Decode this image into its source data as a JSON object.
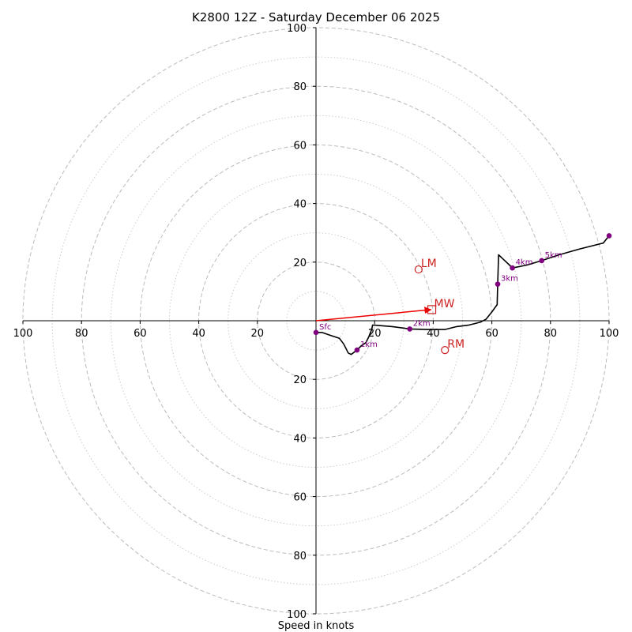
{
  "chart_data": {
    "type": "hodograph",
    "title": "K2800 12Z - Saturday December 06 2025",
    "xlabel": "Speed in knots",
    "units": "knots",
    "range": [
      -100,
      100
    ],
    "major_rings": [
      20,
      40,
      60,
      80,
      100
    ],
    "minor_rings": [
      10,
      30,
      50,
      70,
      90
    ],
    "tick_values": [
      20,
      40,
      60,
      80,
      100
    ],
    "tick_labels": [
      "20",
      "40",
      "60",
      "80",
      "100"
    ],
    "colors": {
      "trace": "#000000",
      "heights": "#800080",
      "motion": "#cc2222",
      "mean_wind_arrow": "#ee0000",
      "rings": "#bbbbbb"
    },
    "trace": [
      [
        0,
        -4
      ],
      [
        2,
        -4
      ],
      [
        5,
        -5
      ],
      [
        8,
        -6
      ],
      [
        9.5,
        -8
      ],
      [
        11,
        -11
      ],
      [
        12,
        -11.5
      ],
      [
        14,
        -10
      ],
      [
        15.5,
        -8.5
      ],
      [
        17,
        -7.5
      ],
      [
        18,
        -5.5
      ],
      [
        19,
        -3
      ],
      [
        19.3,
        -1.5
      ],
      [
        20,
        -1.5
      ],
      [
        26,
        -2
      ],
      [
        32,
        -2.8
      ],
      [
        38,
        -3
      ],
      [
        44,
        -3
      ],
      [
        48,
        -2
      ],
      [
        52,
        -1.5
      ],
      [
        56,
        -0.5
      ],
      [
        58,
        0.5
      ],
      [
        60,
        3
      ],
      [
        61.8,
        5.5
      ],
      [
        62,
        12.5
      ],
      [
        62.3,
        22.5
      ],
      [
        66,
        19
      ],
      [
        67,
        18
      ],
      [
        72,
        19
      ],
      [
        77,
        20.5
      ],
      [
        83,
        22.5
      ],
      [
        90,
        24.5
      ],
      [
        98,
        26.5
      ],
      [
        100,
        29
      ]
    ],
    "height_points": [
      {
        "label": "Sfc",
        "u": 0,
        "v": -4
      },
      {
        "label": "1km",
        "u": 14,
        "v": -10
      },
      {
        "label": "2km",
        "u": 32,
        "v": -2.8
      },
      {
        "label": "3km",
        "u": 62,
        "v": 12.5
      },
      {
        "label": "4km",
        "u": 67,
        "v": 18
      },
      {
        "label": "5km",
        "u": 77,
        "v": 20.5
      },
      {
        "label": "",
        "u": 100,
        "v": 29
      }
    ],
    "storm_motion": [
      {
        "label": "LM",
        "u": 35,
        "v": 17.5
      },
      {
        "label": "RM",
        "u": 44,
        "v": -10
      }
    ],
    "mean_wind": {
      "label": "MW",
      "u": 39.5,
      "v": 3.8
    }
  }
}
